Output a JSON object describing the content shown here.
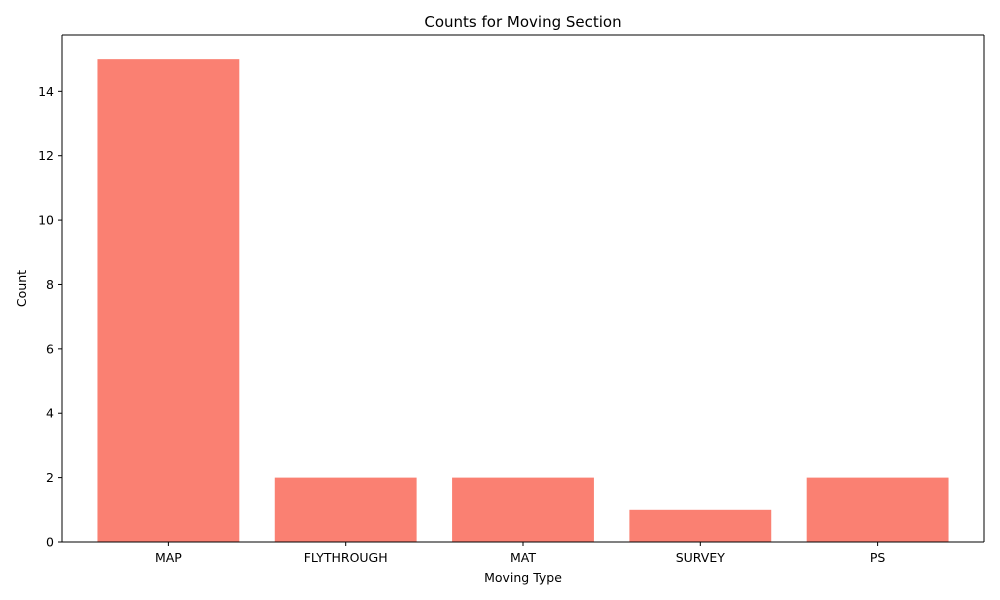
{
  "chart_data": {
    "type": "bar",
    "title": "Counts for Moving Section",
    "xlabel": "Moving Type",
    "ylabel": "Count",
    "categories": [
      "MAP",
      "FLYTHROUGH",
      "MAT",
      "SURVEY",
      "PS"
    ],
    "values": [
      15,
      2,
      2,
      1,
      2
    ],
    "ylim": [
      0,
      15.75
    ],
    "yticks": [
      0,
      2,
      4,
      6,
      8,
      10,
      12,
      14
    ],
    "grid": false,
    "legend": "none",
    "bar_color": "#fa8072"
  }
}
